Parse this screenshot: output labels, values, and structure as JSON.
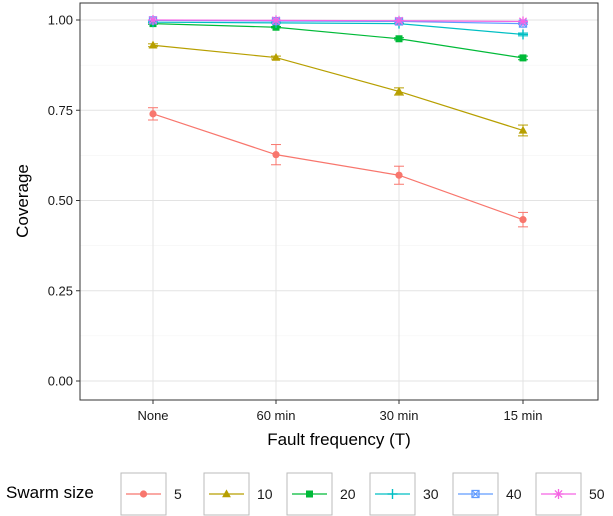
{
  "chart_data": {
    "type": "line",
    "xlabel": "Fault frequency (T)",
    "ylabel": "Coverage",
    "categories": [
      "None",
      "60 min",
      "30 min",
      "15 min"
    ],
    "ylim": [
      0,
      1.05
    ],
    "yticks": [
      0.0,
      0.25,
      0.5,
      0.75,
      1.0
    ],
    "ytick_labels": [
      "0.00",
      "0.25",
      "0.50",
      "0.75",
      "1.00"
    ],
    "grid": true,
    "legend": {
      "title": "Swarm size",
      "placement": "bottom"
    },
    "series": [
      {
        "name": "5",
        "color": "#F8766D",
        "marker": "circle",
        "values": [
          0.74,
          0.627,
          0.57,
          0.447
        ],
        "err": [
          0.017,
          0.028,
          0.025,
          0.02
        ]
      },
      {
        "name": "10",
        "color": "#B79F00",
        "marker": "triangle",
        "values": [
          0.93,
          0.896,
          0.802,
          0.694
        ],
        "err": [
          0.004,
          0.004,
          0.01,
          0.015
        ]
      },
      {
        "name": "20",
        "color": "#00BA38",
        "marker": "square",
        "values": [
          0.99,
          0.98,
          0.948,
          0.895
        ],
        "err": [
          0.002,
          0.002,
          0.003,
          0.005
        ]
      },
      {
        "name": "30",
        "color": "#00BFC4",
        "marker": "plus",
        "values": [
          0.994,
          0.992,
          0.99,
          0.96
        ],
        "err": [
          0.001,
          0.001,
          0.001,
          0.004
        ]
      },
      {
        "name": "40",
        "color": "#619CFF",
        "marker": "boxx",
        "values": [
          0.999,
          0.997,
          0.996,
          0.99
        ],
        "err": [
          0.001,
          0.001,
          0.001,
          0.002
        ]
      },
      {
        "name": "50",
        "color": "#F564E3",
        "marker": "star",
        "values": [
          1.0,
          0.999,
          0.998,
          0.996
        ],
        "err": [
          0.0,
          0.001,
          0.001,
          0.001
        ]
      }
    ]
  }
}
